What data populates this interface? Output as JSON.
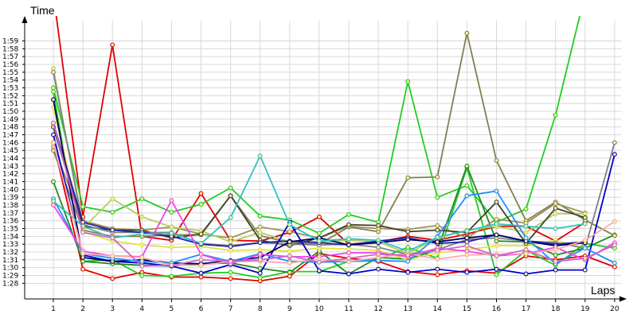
{
  "chart_data": {
    "type": "line",
    "title": "",
    "xlabel": "Laps",
    "ylabel": "Time",
    "x": [
      1,
      2,
      3,
      4,
      5,
      6,
      7,
      8,
      9,
      10,
      11,
      12,
      13,
      14,
      15,
      16,
      17,
      18,
      19,
      20
    ],
    "x_tick_labels": [
      "1",
      "2",
      "3",
      "4",
      "5",
      "6",
      "7",
      "8",
      "9",
      "10",
      "11",
      "12",
      "13",
      "14",
      "15",
      "16",
      "17",
      "18",
      "19",
      "20"
    ],
    "y_tick_labels": [
      "1:28",
      "1:29",
      "1:30",
      "1:31",
      "1:32",
      "1:33",
      "1:34",
      "1:35",
      "1:36",
      "1:37",
      "1:38",
      "1:39",
      "1:40",
      "1:41",
      "1:42",
      "1:43",
      "1:44",
      "1:45",
      "1:46",
      "1:47",
      "1:48",
      "1:49",
      "1:50",
      "1:51",
      "1:52",
      "1:53",
      "1:54",
      "1:55",
      "1:56",
      "1:57",
      "1:58",
      "1:59"
    ],
    "y_tick_seconds": [
      88,
      89,
      90,
      91,
      92,
      93,
      94,
      95,
      96,
      97,
      98,
      99,
      100,
      101,
      102,
      103,
      104,
      105,
      106,
      107,
      108,
      109,
      110,
      111,
      112,
      113,
      114,
      115,
      116,
      117,
      118,
      119
    ],
    "y_unit": "seconds (m:ss)",
    "ylim": [
      86,
      122
    ],
    "grid": true,
    "legend": "none",
    "series": [
      {
        "color": "#e00000",
        "values": [
          125,
          96.5,
          118.5,
          94,
          93.5,
          99.5,
          93.5,
          93.4,
          94.5,
          96.5,
          93,
          93.3,
          94,
          93.5,
          94.3,
          95.3,
          95.3,
          93.4,
          95.8,
          null
        ]
      },
      {
        "color": "#e00000",
        "values": [
          106,
          89.8,
          88.6,
          89.4,
          88.8,
          88.8,
          88.6,
          88.3,
          88.9,
          91.8,
          91.2,
          90.8,
          89.5,
          89.1,
          89.6,
          89.3,
          91.5,
          91,
          91.5,
          90.1
        ]
      },
      {
        "color": "#22cc22",
        "values": [
          113,
          97.8,
          97.1,
          98.8,
          97.1,
          98.1,
          100.2,
          96.6,
          96.1,
          94.4,
          96.8,
          95.8,
          113.8,
          99,
          100.5,
          95.8,
          97.5,
          109.5,
          125,
          null
        ]
      },
      {
        "color": "#22cc22",
        "values": [
          112.5,
          90.8,
          91,
          89,
          88.9,
          89.3,
          89.4,
          88.7,
          89.5,
          89.5,
          90.8,
          91.1,
          92.6,
          91.2,
          102.8,
          89.1,
          92.2,
          90.3,
          93.1,
          92.5
        ]
      },
      {
        "color": "#228822",
        "values": [
          101,
          90.8,
          90.5,
          90.3,
          90.2,
          90.5,
          90.6,
          89.9,
          89.4,
          92.1,
          89.2,
          91.3,
          91.1,
          92.3,
          103,
          93.4,
          93.3,
          91.6,
          92.5,
          94.2
        ]
      },
      {
        "color": "#808050",
        "values": [
          105,
          94.8,
          94,
          94,
          94.2,
          94.2,
          99.2,
          94.1,
          93.2,
          93,
          95.2,
          94.6,
          101.5,
          101.6,
          120,
          103.7,
          96,
          98.4,
          96.1,
          94.1
        ]
      },
      {
        "color": "#a09050",
        "values": [
          105.5,
          96,
          95,
          94.8,
          95.2,
          94.3,
          93.8,
          95.2,
          94.6,
          93.8,
          95.3,
          95,
          94.9,
          95.4,
          93.8,
          96.2,
          95.7,
          98.2,
          97,
          null
        ]
      },
      {
        "color": "#b0d060",
        "values": [
          115.5,
          95,
          98.8,
          96.5,
          95.2,
          94.7,
          93.3,
          94.5,
          93.3,
          93.3,
          93.5,
          93.3,
          91.8,
          93.8,
          94.8,
          95.3,
          94.5,
          96.9,
          96.9,
          null
        ]
      },
      {
        "color": "#e0e040",
        "values": [
          110.5,
          94.6,
          93.4,
          92.9,
          92.6,
          92.7,
          92.2,
          92.3,
          92.1,
          92.5,
          92.4,
          92.2,
          91,
          91.9,
          92.3,
          92.8,
          92.8,
          93.5,
          92.5,
          null
        ]
      },
      {
        "color": "#404030",
        "values": [
          108,
          95.3,
          94.8,
          94.8,
          93.8,
          94.3,
          99.2,
          93.5,
          92.8,
          93.8,
          95.5,
          95.4,
          94.6,
          94.8,
          94.5,
          98.4,
          93.1,
          97.6,
          96.4,
          null
        ]
      },
      {
        "color": "#808080",
        "values": [
          115,
          95.5,
          94.5,
          94.5,
          94.5,
          93.1,
          92.8,
          93.2,
          93,
          92.9,
          93,
          92.6,
          91.7,
          92.3,
          93.6,
          93.8,
          93.4,
          93.2,
          92.5,
          106
        ]
      },
      {
        "color": "#0000cc",
        "values": [
          107,
          91.6,
          90.8,
          90.6,
          90.2,
          89.3,
          90.4,
          89.3,
          95.8,
          89.6,
          89.2,
          89.8,
          89.4,
          89.8,
          89.4,
          89.8,
          89.2,
          89.7,
          89.7,
          104.5
        ]
      },
      {
        "color": "#2222aa",
        "values": [
          108.5,
          95.8,
          94.8,
          94.5,
          94,
          93,
          92.7,
          93.2,
          93.4,
          93.2,
          92.9,
          93.4,
          93.8,
          93.1,
          93.3,
          94.2,
          93.4,
          93,
          93.3,
          null
        ]
      },
      {
        "color": "#000066",
        "values": [
          111.5,
          91.3,
          90.8,
          91,
          90.6,
          90.5,
          90.9,
          91.3,
          93.3,
          93.8,
          92.9,
          93.2,
          93.6,
          93.3,
          93.8,
          94.2,
          93.4,
          92.8,
          93.2,
          null
        ]
      },
      {
        "color": "#1e90ff",
        "values": [
          98.8,
          91.8,
          91.2,
          90.8,
          90.6,
          91.7,
          90.8,
          91.8,
          90.8,
          90.7,
          90.8,
          90.9,
          90.8,
          94,
          99.2,
          99.8,
          93.8,
          90.5,
          92.5,
          90.6
        ]
      },
      {
        "color": "#30c0c0",
        "values": [
          98.5,
          95.3,
          93.8,
          94.3,
          94.4,
          93.1,
          96.4,
          104.3,
          95.5,
          93.4,
          93.7,
          93.5,
          92.1,
          93.9,
          94.7,
          95.6,
          95.3,
          95,
          95.6,
          null
        ]
      },
      {
        "color": "#ee44ee",
        "values": [
          98,
          92.1,
          91.5,
          91.4,
          98.6,
          91.7,
          90.5,
          91.7,
          91.4,
          91.4,
          91.9,
          91.9,
          91.4,
          92.5,
          92.1,
          91.5,
          91.8,
          92.6,
          91,
          93.2
        ]
      },
      {
        "color": "#ffaaaa",
        "values": [
          106,
          91.8,
          91.5,
          91.3,
          90.3,
          90.3,
          90.8,
          90.8,
          90.6,
          91.1,
          90.8,
          91.3,
          91.8,
          91.1,
          91.6,
          91.7,
          91.8,
          92.3,
          93.5,
          95.9
        ]
      },
      {
        "color": "#cc66cc",
        "values": [
          108.5,
          94.5,
          93.8,
          90.2,
          90.3,
          91,
          90.8,
          91,
          91.5,
          90.7,
          91.2,
          91.7,
          91.6,
          92.2,
          92.8,
          91.5,
          92.3,
          90.8,
          91.2,
          92.9
        ]
      }
    ]
  },
  "axes": {
    "x_title": "Laps",
    "y_title": "Time"
  }
}
